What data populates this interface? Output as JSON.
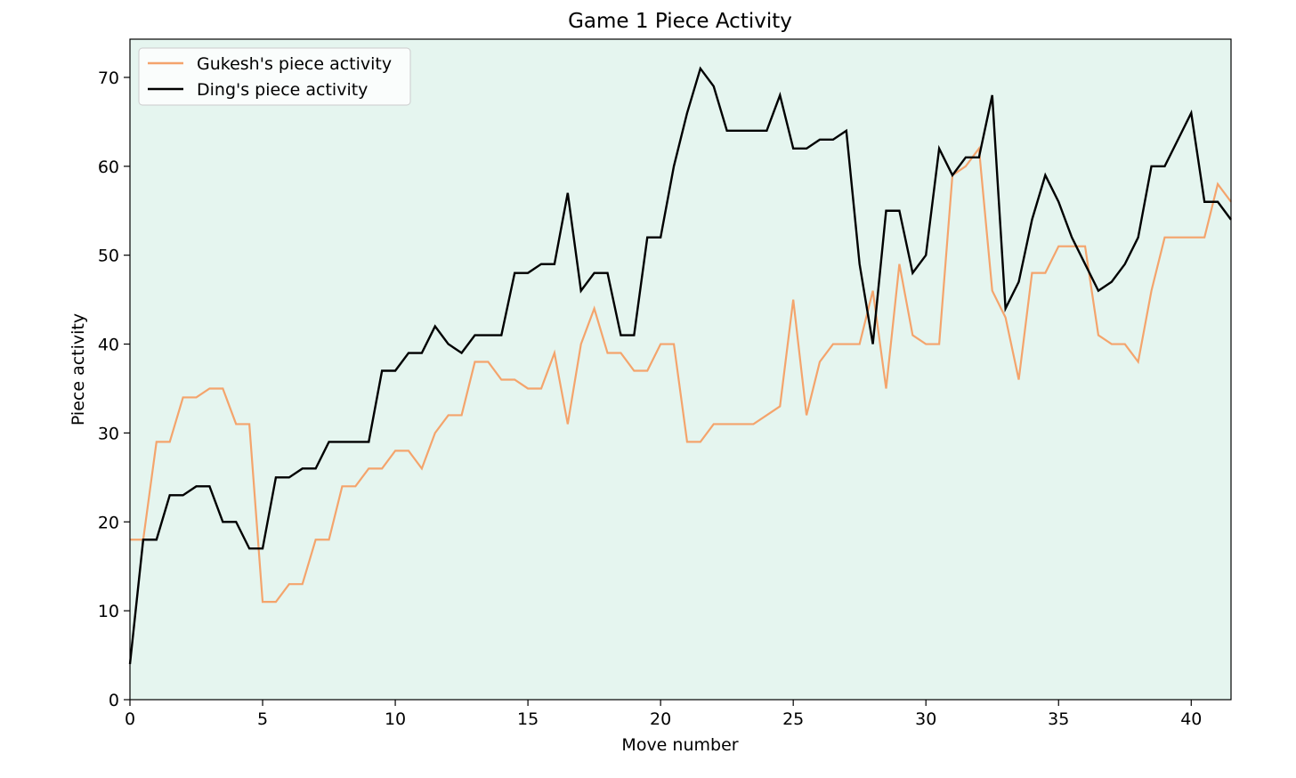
{
  "chart_data": {
    "type": "line",
    "title": "Game 1 Piece Activity",
    "x_label": "Move number",
    "y_label": "Piece activity",
    "x": [
      0,
      0.5,
      1,
      1.5,
      2,
      2.5,
      3,
      3.5,
      4,
      4.5,
      5,
      5.5,
      6,
      6.5,
      7,
      7.5,
      8,
      8.5,
      9,
      9.5,
      10,
      10.5,
      11,
      11.5,
      12,
      12.5,
      13,
      13.5,
      14,
      14.5,
      15,
      15.5,
      16,
      16.5,
      17,
      17.5,
      18,
      18.5,
      19,
      19.5,
      20,
      20.5,
      21,
      21.5,
      22,
      22.5,
      23,
      23.5,
      24,
      24.5,
      25,
      25.5,
      26,
      26.5,
      27,
      27.5,
      28,
      28.5,
      29,
      29.5,
      30,
      30.5,
      31,
      31.5,
      32,
      32.5,
      33,
      33.5,
      34,
      34.5,
      35,
      35.5,
      36,
      36.5,
      37,
      37.5,
      38,
      38.5,
      39,
      39.5,
      40,
      40.5,
      41,
      41.5
    ],
    "series": [
      {
        "name": "Gukesh's piece activity",
        "color": "#f4a46c",
        "values": [
          18,
          18,
          29,
          29,
          34,
          34,
          35,
          35,
          31,
          31,
          11,
          11,
          13,
          13,
          18,
          18,
          24,
          24,
          26,
          26,
          28,
          28,
          26,
          30,
          32,
          32,
          38,
          38,
          36,
          36,
          35,
          35,
          39,
          31,
          40,
          44,
          39,
          39,
          37,
          37,
          40,
          40,
          29,
          29,
          31,
          31,
          31,
          31,
          32,
          33,
          45,
          32,
          38,
          40,
          40,
          40,
          46,
          35,
          49,
          41,
          40,
          40,
          59,
          60,
          62,
          46,
          43,
          36,
          48,
          48,
          51,
          51,
          51,
          41,
          40,
          40,
          38,
          46,
          52,
          52,
          52,
          52,
          58,
          56
        ]
      },
      {
        "name": "Ding's piece activity",
        "color": "#000000",
        "values": [
          4,
          18,
          18,
          23,
          23,
          24,
          24,
          20,
          20,
          17,
          17,
          25,
          25,
          26,
          26,
          29,
          29,
          29,
          29,
          37,
          37,
          39,
          39,
          42,
          40,
          39,
          41,
          41,
          41,
          48,
          48,
          49,
          49,
          57,
          46,
          48,
          48,
          41,
          41,
          52,
          52,
          60,
          66,
          71,
          69,
          64,
          64,
          64,
          64,
          68,
          62,
          62,
          63,
          63,
          64,
          49,
          40,
          55,
          55,
          48,
          50,
          62,
          59,
          61,
          61,
          68,
          44,
          47,
          54,
          59,
          56,
          52,
          49,
          46,
          47,
          49,
          52,
          60,
          60,
          63,
          66,
          56,
          56,
          54
        ]
      }
    ],
    "xlim": [
      0,
      41.5
    ],
    "ylim": [
      0,
      74.3
    ],
    "xticks": [
      0,
      5,
      10,
      15,
      20,
      25,
      30,
      35,
      40
    ],
    "yticks": [
      0,
      10,
      20,
      30,
      40,
      50,
      60,
      70
    ],
    "background": "#e5f5ef",
    "legend": "upper left"
  }
}
